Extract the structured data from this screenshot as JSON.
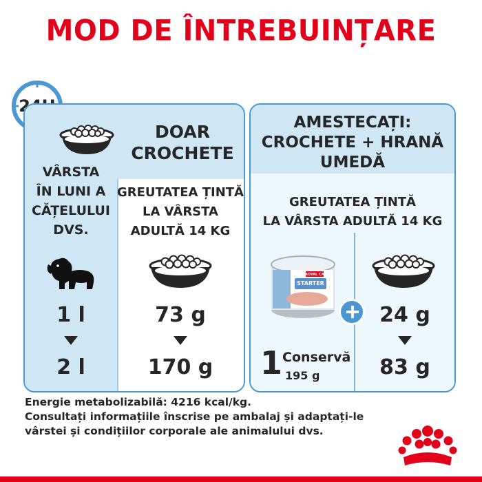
{
  "title": "MOD DE ÎNTREBUINȚARE",
  "badge": "24H",
  "left": {
    "heading_line1": "DOAR",
    "heading_line2": "CROCHETE",
    "age_line1": "VÂRSTA",
    "age_line2": "ÎN LUNI A",
    "age_line3": "CĂȚELULUI",
    "age_line4": "DVS.",
    "target_line1": "GREUTATEA ȚINTĂ",
    "target_line2": "LA VÂRSTA",
    "target_line3": "ADULTĂ 14 KG",
    "age_from": "1 l",
    "age_to": "2 l",
    "kibble_from": "73 g",
    "kibble_to": "170 g"
  },
  "right": {
    "heading_line1": "AMESTECAȚI:",
    "heading_line2": "CROCHETE + HRANĂ",
    "heading_line3": "UMEDĂ",
    "target_line1": "GREUTATEA ȚINTĂ",
    "target_line2": "LA VÂRSTA ADULTĂ 14 KG",
    "can_count": "1",
    "can_label": "Conservă",
    "can_weight": "195 g",
    "kibble_from": "24 g",
    "kibble_to": "83 g",
    "can_brand": "ROYAL CANIN",
    "can_name": "STARTER"
  },
  "footer": {
    "line1": "Energie metabolizabilă: 4216 kcal/kg.",
    "line2": "Consultați informațiile înscrise pe ambalaj și adaptați-le",
    "line3": "vârstei și condițiilor corporale ale animalului dvs."
  },
  "colors": {
    "brand_red": "#e2001a",
    "panel_border": "#4a97d1",
    "panel_fill": "#cfe7f5"
  }
}
